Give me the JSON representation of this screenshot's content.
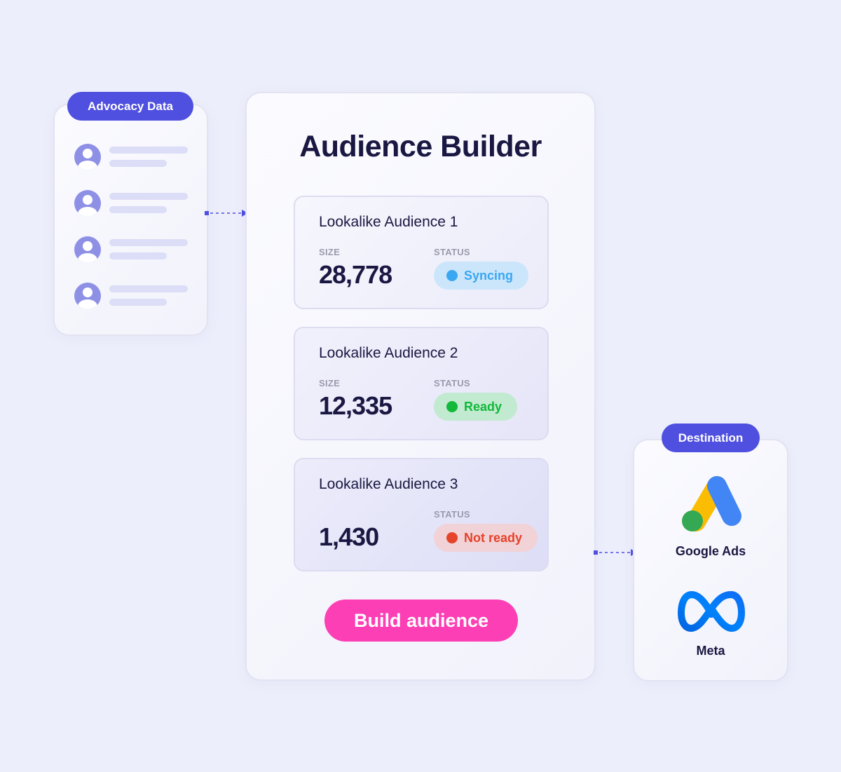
{
  "advocacy": {
    "title": "Advocacy Data",
    "rows": 4
  },
  "builder": {
    "title": "Audience Builder",
    "size_label": "SIZE",
    "status_label": "STATUS",
    "audiences": [
      {
        "name": "Lookalike Audience 1",
        "size": "28,778",
        "status": "Syncing"
      },
      {
        "name": "Lookalike Audience 2",
        "size": "12,335",
        "status": "Ready"
      },
      {
        "name": "Lookalike Audience 3",
        "size": "1,430",
        "status": "Not ready"
      }
    ],
    "button": "Build audience"
  },
  "destination": {
    "title": "Destination",
    "items": [
      {
        "name": "Google Ads",
        "icon": "google-ads-logo"
      },
      {
        "name": "Meta",
        "icon": "meta-logo"
      }
    ]
  },
  "colors": {
    "accent": "#4f4fe0",
    "button": "#fd3fb5",
    "syncing": "#3aa7f2",
    "ready": "#12b83a",
    "not_ready": "#e5432a"
  }
}
